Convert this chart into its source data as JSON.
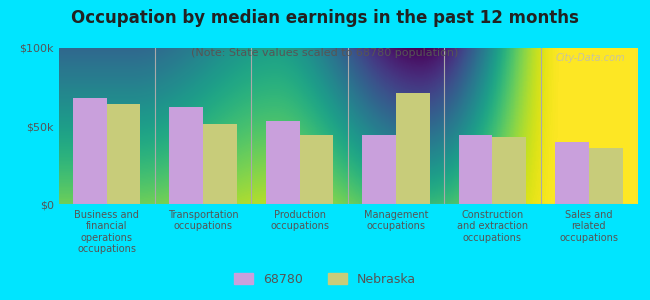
{
  "title": "Occupation by median earnings in the past 12 months",
  "subtitle": "(Note: State values scaled to 68780 population)",
  "categories": [
    "Business and\nfinancial\noperations\noccupations",
    "Transportation\noccupations",
    "Production\noccupations",
    "Management\noccupations",
    "Construction\nand extraction\noccupations",
    "Sales and\nrelated\noccupations"
  ],
  "values_68780": [
    68000,
    62000,
    53000,
    44000,
    44000,
    40000
  ],
  "values_nebraska": [
    64000,
    51000,
    44000,
    71000,
    43000,
    36000
  ],
  "color_68780": "#c9a0dc",
  "color_nebraska": "#c8cc7a",
  "background_fig": "#00e5ff",
  "ylim": [
    0,
    100000
  ],
  "yticks": [
    0,
    50000,
    100000
  ],
  "ytick_labels": [
    "$0",
    "$50k",
    "$100k"
  ],
  "legend_label_68780": "68780",
  "legend_label_nebraska": "Nebraska",
  "bar_width": 0.35,
  "title_color": "#222222",
  "subtitle_color": "#555555",
  "tick_label_color": "#555555"
}
